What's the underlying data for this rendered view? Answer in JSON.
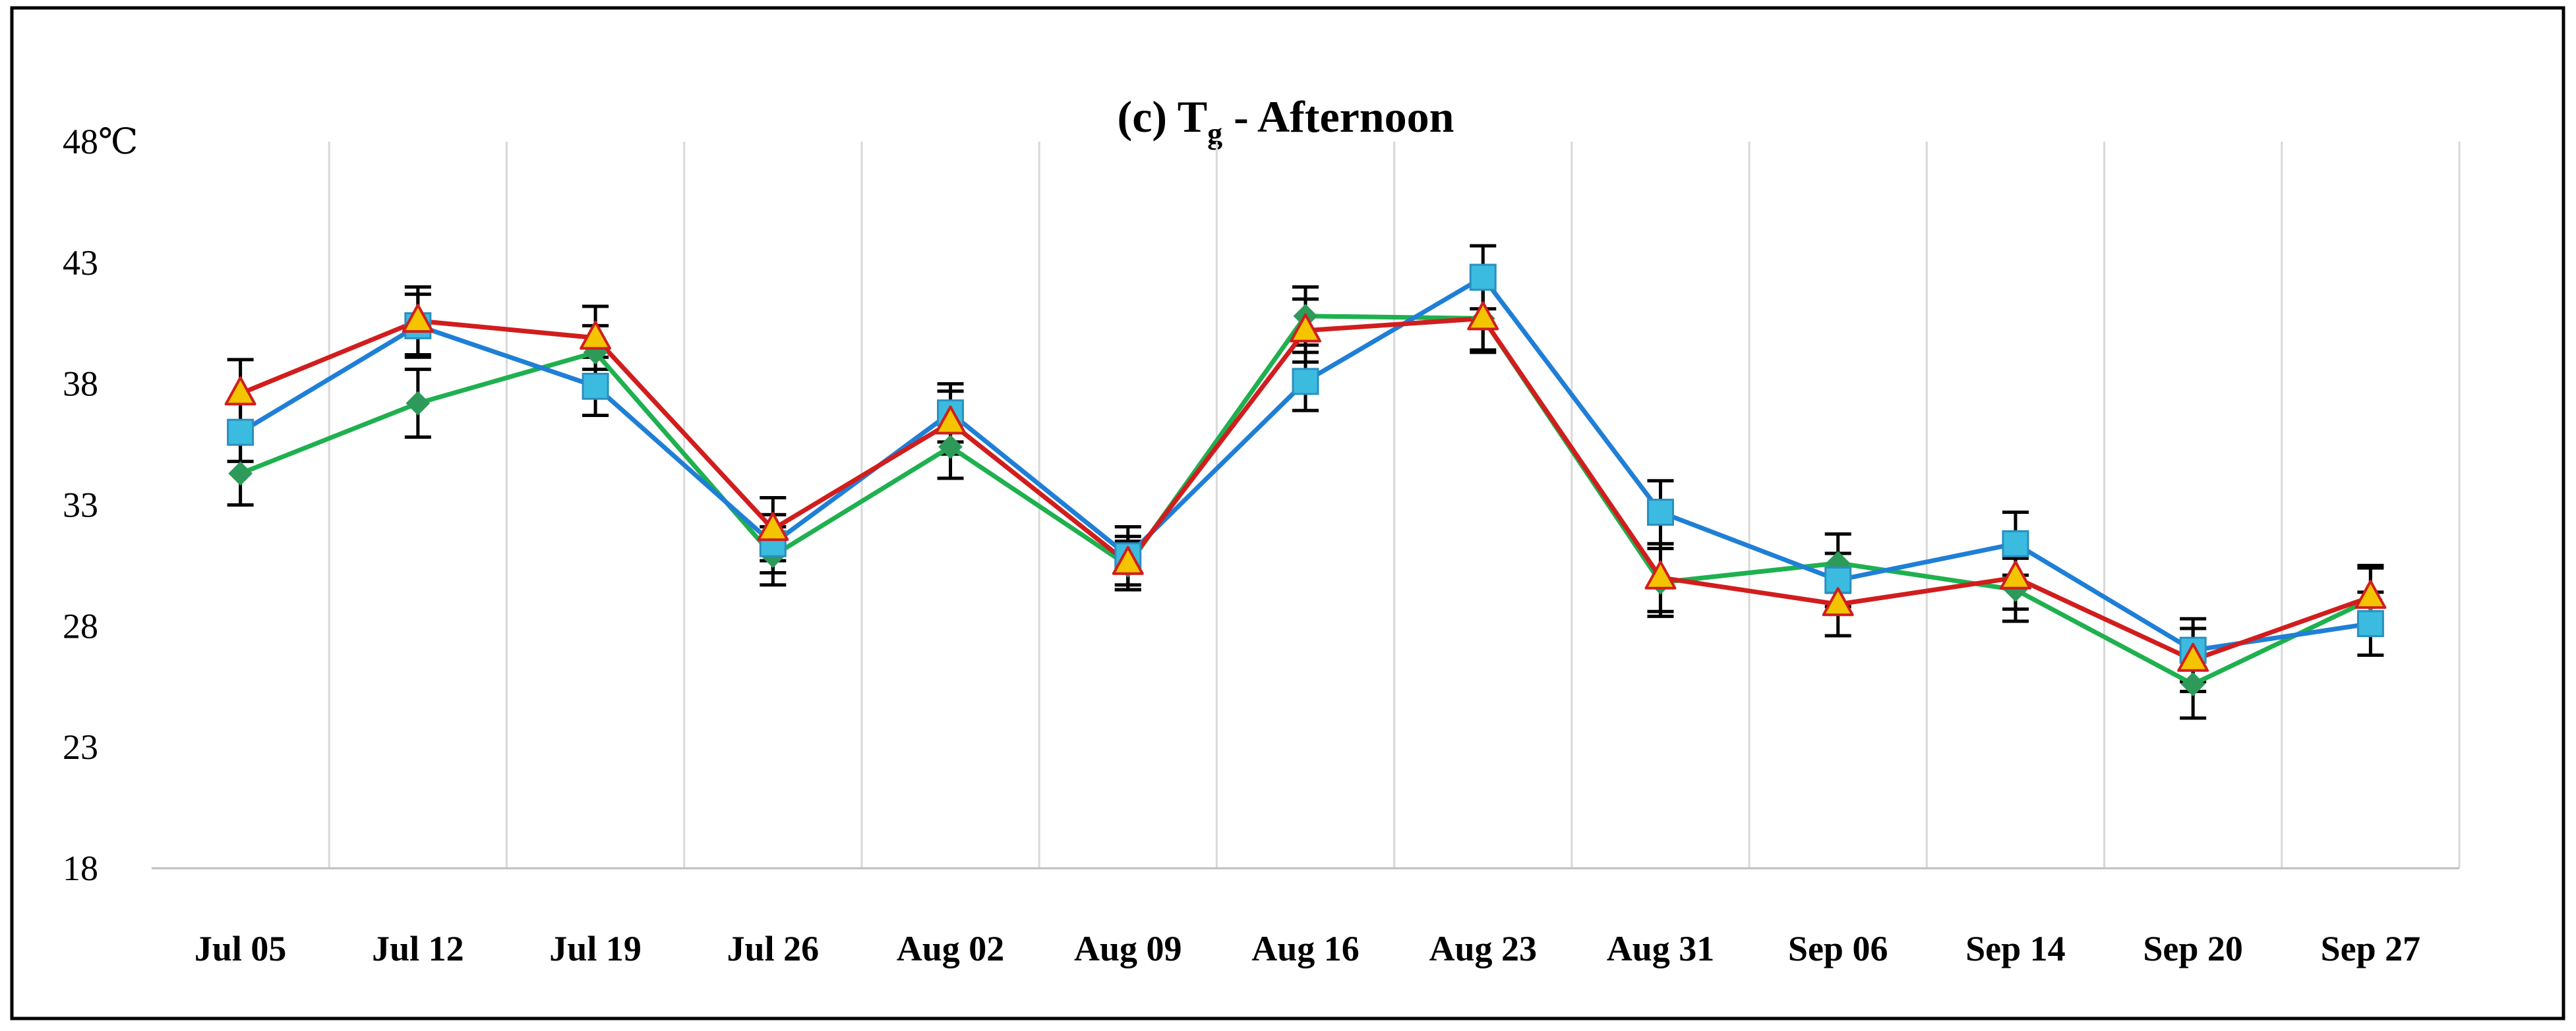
{
  "chart_data": {
    "type": "line",
    "title_prefix": "(c)  T",
    "title_subscript": "g",
    "title_suffix": " - Afternoon",
    "xlabel": "",
    "ylabel": "",
    "y_unit_label": "48℃",
    "categories": [
      "Jul 05",
      "Jul 12",
      "Jul 19",
      "Jul 26",
      "Aug 02",
      "Aug 09",
      "Aug 16",
      "Aug 23",
      "Aug 31",
      "Sep 06",
      "Sep 14",
      "Sep 20",
      "Sep 27"
    ],
    "ylim": [
      18,
      48
    ],
    "yticks": [
      18,
      23,
      28,
      33,
      38,
      43,
      48
    ],
    "ytick_labels": [
      "18",
      "23",
      "28",
      "33",
      "38",
      "43",
      "48℃"
    ],
    "grid": "vertical",
    "series": [
      {
        "name": "green-series",
        "line_color": "#1fb04f",
        "marker": "diamond",
        "marker_color": "#2e9a5a",
        "values": [
          34.3,
          37.2,
          39.3,
          30.9,
          35.4,
          30.5,
          40.8,
          40.7,
          29.8,
          30.6,
          29.5,
          25.6,
          29.1
        ],
        "errors": [
          1.3,
          1.4,
          1.1,
          1.2,
          1.3,
          1.0,
          1.2,
          1.3,
          1.4,
          1.2,
          1.3,
          1.4,
          1.3
        ]
      },
      {
        "name": "blue-series",
        "line_color": "#1f7fd6",
        "marker": "square",
        "marker_color": "#3cbbe0",
        "values": [
          36.0,
          40.4,
          37.9,
          31.4,
          36.8,
          30.9,
          38.1,
          42.4,
          32.7,
          29.9,
          31.4,
          27.0,
          28.1
        ],
        "errors": [
          1.2,
          1.3,
          1.2,
          1.2,
          1.2,
          1.2,
          1.2,
          1.3,
          1.3,
          1.1,
          1.3,
          1.3,
          1.3
        ]
      },
      {
        "name": "red-series",
        "line_color": "#d11d1d",
        "marker": "triangle",
        "marker_color": "#f5c400",
        "marker_edge": "#d11d1d",
        "values": [
          37.6,
          40.6,
          39.9,
          32.0,
          36.4,
          30.6,
          40.2,
          40.7,
          30.0,
          28.9,
          30.0,
          26.6,
          29.2
        ],
        "errors": [
          1.4,
          1.4,
          1.3,
          1.3,
          1.3,
          1.1,
          1.3,
          1.4,
          1.4,
          1.3,
          1.3,
          1.3,
          1.3
        ]
      }
    ]
  }
}
